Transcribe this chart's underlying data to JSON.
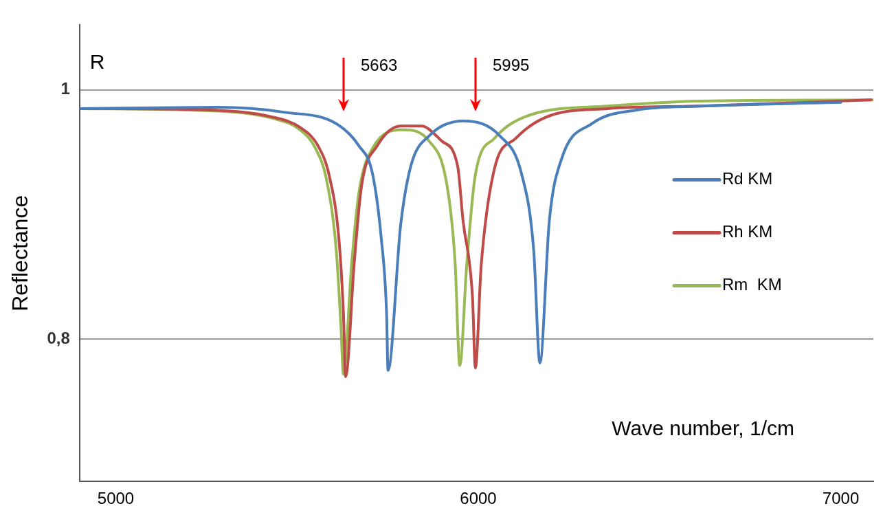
{
  "chart_data": {
    "type": "line",
    "xlabel": "Wave number, 1/cm",
    "ylabel": "Reflectance",
    "xlim": [
      4900,
      7090
    ],
    "ylim": [
      0.686,
      1.052
    ],
    "xticks": [
      5000,
      6000,
      7000
    ],
    "yticks": [
      {
        "value": 0.8,
        "label": "0,8"
      },
      1
    ],
    "grid": "y",
    "legend": "right",
    "marker": "none",
    "line_style": "solid",
    "annotations": [
      "R",
      "5663",
      "5995"
    ],
    "series": [
      {
        "name": "Rd KM",
        "color": "#4a7ebb",
        "x": [
          4902,
          5282,
          5467,
          5608,
          5671,
          5708,
          5732,
          5747,
          5751,
          5786,
          5814,
          5864,
          5958,
          6060,
          6120,
          6153,
          6170,
          6196,
          6229,
          6314,
          6440,
          6611,
          7000
        ],
        "values": [
          0.985,
          0.986,
          0.982,
          0.973,
          0.955,
          0.933,
          0.882,
          0.821,
          0.775,
          0.892,
          0.939,
          0.963,
          0.975,
          0.963,
          0.932,
          0.871,
          0.781,
          0.895,
          0.944,
          0.973,
          0.984,
          0.987,
          0.99
        ]
      },
      {
        "name": "Rh KM",
        "color": "#be4b48",
        "x": [
          4902,
          5245,
          5436,
          5508,
          5558,
          5589,
          5615,
          5628,
          5634,
          5658,
          5678,
          5721,
          5786,
          5843,
          5899,
          5943,
          5958,
          5984,
          5992,
          6008,
          6044,
          6103,
          6186,
          6357,
          6611,
          7083
        ],
        "values": [
          0.985,
          0.984,
          0.978,
          0.97,
          0.955,
          0.931,
          0.882,
          0.821,
          0.77,
          0.862,
          0.923,
          0.955,
          0.971,
          0.971,
          0.959,
          0.939,
          0.895,
          0.834,
          0.777,
          0.859,
          0.936,
          0.961,
          0.978,
          0.985,
          0.987,
          0.992
        ]
      },
      {
        "name": "Rm  KM",
        "color": "#98b954",
        "x": [
          4902,
          5282,
          5436,
          5508,
          5551,
          5582,
          5608,
          5621,
          5628,
          5651,
          5671,
          5708,
          5793,
          5864,
          5914,
          5936,
          5949,
          5968,
          5992,
          6044,
          6144,
          6357,
          6611,
          7089
        ],
        "values": [
          0.985,
          0.983,
          0.977,
          0.968,
          0.953,
          0.927,
          0.872,
          0.811,
          0.772,
          0.862,
          0.918,
          0.953,
          0.968,
          0.959,
          0.923,
          0.862,
          0.779,
          0.859,
          0.932,
          0.961,
          0.98,
          0.987,
          0.991,
          0.992
        ]
      }
    ]
  }
}
